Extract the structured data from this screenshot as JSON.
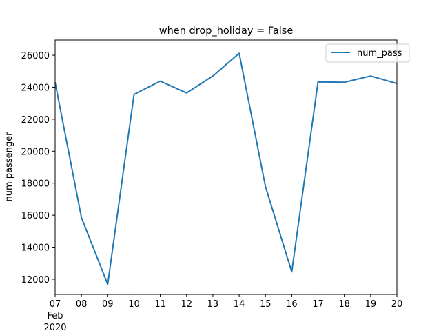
{
  "chart_data": {
    "type": "line",
    "title": "when drop_holiday = False",
    "xlabel": "",
    "ylabel": "num passenger",
    "x": [
      "2020-02-07",
      "2020-02-08",
      "2020-02-09",
      "2020-02-10",
      "2020-02-11",
      "2020-02-12",
      "2020-02-13",
      "2020-02-14",
      "2020-02-15",
      "2020-02-16",
      "2020-02-17",
      "2020-02-18",
      "2020-02-19",
      "2020-02-20"
    ],
    "x_tick_labels": [
      "07",
      "08",
      "09",
      "10",
      "11",
      "12",
      "13",
      "14",
      "15",
      "16",
      "17",
      "18",
      "19",
      "20"
    ],
    "x_tick_sublabel": [
      "Feb",
      "2020"
    ],
    "series": [
      {
        "name": "num_pass",
        "color": "#1f77b4",
        "values": [
          24300,
          15850,
          11680,
          23550,
          24380,
          23640,
          24700,
          26120,
          17800,
          12460,
          24330,
          24310,
          24700,
          24230
        ]
      }
    ],
    "ylim": [
      11050,
      26950
    ],
    "yticks": [
      12000,
      14000,
      16000,
      18000,
      20000,
      22000,
      24000,
      26000
    ],
    "legend_position": "upper right",
    "grid": false
  }
}
